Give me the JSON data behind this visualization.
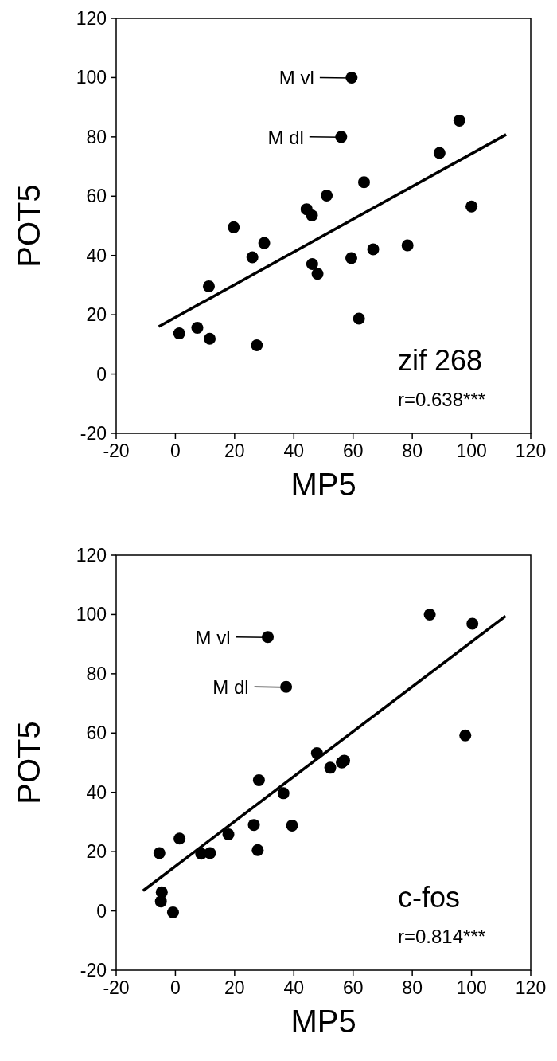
{
  "chart_data": [
    {
      "type": "scatter",
      "xlabel": "MP5",
      "ylabel": "POT5",
      "xlim": [
        -20,
        120
      ],
      "ylim": [
        -20,
        120
      ],
      "xticks": [
        -20,
        0,
        20,
        40,
        60,
        80,
        100,
        120
      ],
      "yticks": [
        -20,
        0,
        20,
        40,
        60,
        80,
        100,
        120
      ],
      "marker": "circle",
      "series": [
        {
          "color": "#000000",
          "x": [
            59.5,
            56,
            95.9,
            89.2,
            63.7,
            51.1,
            44.3,
            46.1,
            100,
            19.7,
            30,
            26,
            66.8,
            78.4,
            59.4,
            46.2,
            48,
            11.3,
            62,
            1.3,
            7.4,
            11.6,
            27.5
          ],
          "values": [
            100,
            80,
            85.5,
            74.6,
            64.7,
            60.2,
            55.6,
            53.5,
            56.5,
            49.5,
            44.2,
            39.4,
            42.1,
            43.4,
            39.1,
            37.1,
            33.8,
            29.6,
            18.7,
            13.7,
            15.6,
            11.9,
            9.7
          ]
        },
        {
          "type": "line",
          "color": "#000000",
          "marker": "none",
          "x": [
            -5.6,
            111.7
          ],
          "values": [
            16,
            80.8
          ]
        }
      ],
      "annotations": [
        {
          "text": "M vl",
          "x": 59.5,
          "y": 100
        },
        {
          "text": "M dl",
          "x": 56,
          "y": 80
        },
        "zif 268",
        "r=0.638***"
      ]
    },
    {
      "type": "scatter",
      "xlabel": "MP5",
      "ylabel": "POT5",
      "xlim": [
        -20,
        120
      ],
      "ylim": [
        -20,
        120
      ],
      "xticks": [
        -20,
        0,
        20,
        40,
        60,
        80,
        100,
        120
      ],
      "yticks": [
        -20,
        0,
        20,
        40,
        60,
        80,
        100,
        120
      ],
      "marker": "circle",
      "series": [
        {
          "color": "#000000",
          "x": [
            31.2,
            37.4,
            85.9,
            100.3,
            97.9,
            47.8,
            52.3,
            56.2,
            57,
            28.2,
            36.5,
            26.5,
            39.4,
            17.9,
            27.8,
            1.4,
            -5.4,
            8.7,
            11.7,
            -4.6,
            -4.9,
            -0.8
          ],
          "values": [
            92.4,
            75.6,
            100,
            96.9,
            59.2,
            53.2,
            48.3,
            50.1,
            50.7,
            44.1,
            39.7,
            29,
            28.8,
            25.8,
            20.5,
            24.4,
            19.5,
            19.3,
            19.5,
            6.3,
            3.2,
            -0.5
          ]
        },
        {
          "type": "line",
          "color": "#000000",
          "marker": "none",
          "x": [
            -10.9,
            111.5
          ],
          "values": [
            6.8,
            99.5
          ]
        }
      ],
      "annotations": [
        {
          "text": "M vl",
          "x": 31.2,
          "y": 92.4
        },
        {
          "text": "M dl",
          "x": 37.4,
          "y": 75.6
        },
        "c-fos",
        "r=0.814***"
      ]
    }
  ]
}
